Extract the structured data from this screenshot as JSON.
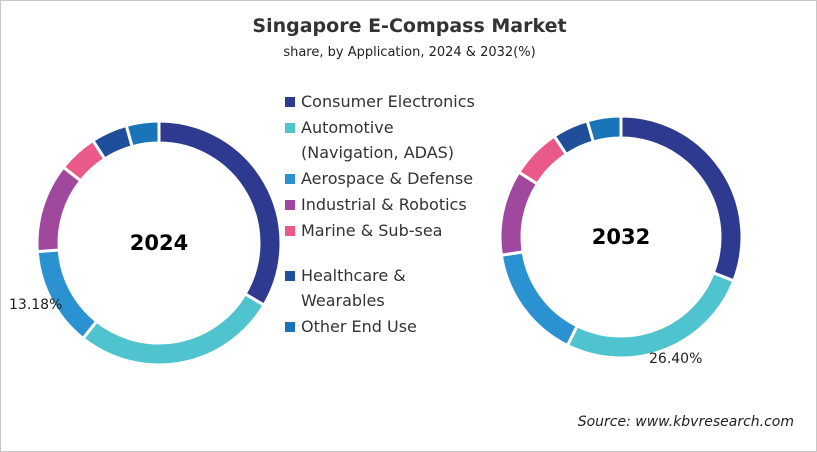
{
  "chart_data": [
    {
      "type": "pie",
      "variant": "donut",
      "title": "Singapore E-Compass Market",
      "subtitle": "share, by Application, 2024 & 2032(%)",
      "center_label": "2024",
      "categories": [
        "Consumer Electronics",
        "Automotive (Navigation, ADAS)",
        "Aerospace & Defense",
        "Industrial & Robotics",
        "Marine & Sub-sea",
        "Healthcare & Wearables",
        "Other End Use"
      ],
      "values": [
        33.5,
        27.2,
        13.18,
        11.8,
        5.2,
        4.8,
        4.32
      ],
      "data_labels": [
        {
          "category": "Aerospace & Defense",
          "text": "13.18%"
        }
      ]
    },
    {
      "type": "pie",
      "variant": "donut",
      "center_label": "2032",
      "categories": [
        "Consumer Electronics",
        "Automotive (Navigation, ADAS)",
        "Aerospace & Defense",
        "Industrial & Robotics",
        "Marine & Sub-sea",
        "Healthcare & Wearables",
        "Other End Use"
      ],
      "values": [
        30.9,
        26.4,
        15.3,
        11.4,
        6.7,
        4.8,
        4.5
      ],
      "data_labels": [
        {
          "category": "Automotive (Navigation, ADAS)",
          "text": "26.40%"
        }
      ]
    }
  ],
  "title": "Singapore E-Compass Market",
  "subtitle": "share, by Application, 2024 & 2032(%)",
  "legend": {
    "placement": "center",
    "items": [
      {
        "label": "Consumer Electronics",
        "color": "#2e3a8f"
      },
      {
        "label": "Automotive (Navigation, ADAS)",
        "color": "#4fc4cf"
      },
      {
        "label": "Aerospace & Defense",
        "color": "#2b92d2"
      },
      {
        "label": "Industrial & Robotics",
        "color": "#a0489e"
      },
      {
        "label": "Marine & Sub-sea",
        "color": "#ea5a88"
      },
      {
        "label": "Healthcare & Wearables",
        "color": "#1f4e9a"
      },
      {
        "label": "Other End Use",
        "color": "#1a74b8"
      }
    ]
  },
  "source": "Source: www.kbvresearch.com"
}
